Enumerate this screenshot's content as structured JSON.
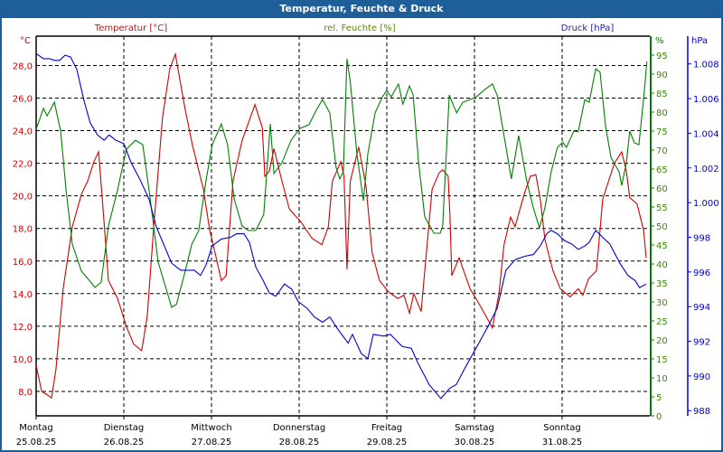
{
  "window": {
    "title": "Temperatur, Feuchte & Druck"
  },
  "chart_data": {
    "type": "line",
    "title": "Temperatur, Feuchte & Druck",
    "x_unit": "hours since Montag 25.08.25 00:00",
    "xlim": [
      0,
      168
    ],
    "days": [
      {
        "name": "Montag",
        "date": "25.08.25"
      },
      {
        "name": "Dienstag",
        "date": "26.08.25"
      },
      {
        "name": "Mittwoch",
        "date": "27.08.25"
      },
      {
        "name": "Donnerstag",
        "date": "28.08.25"
      },
      {
        "name": "Freitag",
        "date": "29.08.25"
      },
      {
        "name": "Samstag",
        "date": "30.08.25"
      },
      {
        "name": "Sonntag",
        "date": "31.08.25"
      }
    ],
    "grid": true,
    "axes": {
      "temperature": {
        "label": "Temperatur [°C]",
        "unit": "°C",
        "ylim": [
          6.5,
          29.8
        ],
        "ticks": [
          "8,0",
          "10,0",
          "12,0",
          "14,0",
          "16,0",
          "18,0",
          "20,0",
          "22,0",
          "24,0",
          "26,0",
          "28,0"
        ],
        "tick_values": [
          8,
          10,
          12,
          14,
          16,
          18,
          20,
          22,
          24,
          26,
          28
        ],
        "color": "#cc0000"
      },
      "humidity": {
        "label": "rel. Feuchte [%]",
        "unit": "%",
        "ylim": [
          0,
          100
        ],
        "ticks": [
          "0",
          "5",
          "10",
          "15",
          "20",
          "25",
          "30",
          "35",
          "40",
          "45",
          "50",
          "55",
          "60",
          "65",
          "70",
          "75",
          "80",
          "85",
          "90",
          "95"
        ],
        "tick_values": [
          0,
          5,
          10,
          15,
          20,
          25,
          30,
          35,
          40,
          45,
          50,
          55,
          60,
          65,
          70,
          75,
          80,
          85,
          90,
          95
        ],
        "color": "#008000"
      },
      "pressure": {
        "label": "Druck [hPa]",
        "unit": "hPa",
        "ylim": [
          987.7,
          1009.6
        ],
        "ticks": [
          "988",
          "990",
          "992",
          "994",
          "996",
          "998",
          "1.000",
          "1.002",
          "1.004",
          "1.006",
          "1.008"
        ],
        "tick_values": [
          988,
          990,
          992,
          994,
          996,
          998,
          1000,
          1002,
          1004,
          1006,
          1008
        ],
        "color": "#0000cc"
      }
    },
    "series": [
      {
        "name": "Temperatur",
        "axis": "temperature",
        "color": "#d00000",
        "points": [
          [
            0,
            9.6
          ],
          [
            1.5,
            8.0
          ],
          [
            3,
            7.8
          ],
          [
            4.2,
            7.6
          ],
          [
            5.4,
            9.3
          ],
          [
            7.4,
            14.3
          ],
          [
            9.9,
            18.1
          ],
          [
            12.4,
            20.1
          ],
          [
            14.1,
            20.9
          ],
          [
            15.8,
            22.1
          ],
          [
            17.1,
            22.7
          ],
          [
            18.1,
            19.8
          ],
          [
            19.8,
            14.8
          ],
          [
            22.3,
            13.7
          ],
          [
            24.7,
            12.0
          ],
          [
            26.7,
            10.9
          ],
          [
            28.9,
            10.5
          ],
          [
            30.4,
            12.6
          ],
          [
            32.2,
            18.1
          ],
          [
            34.6,
            24.8
          ],
          [
            36.6,
            27.8
          ],
          [
            38.1,
            28.7
          ],
          [
            40.8,
            25.3
          ],
          [
            42.8,
            23.1
          ],
          [
            45.8,
            20.4
          ],
          [
            47.5,
            17.9
          ],
          [
            49,
            16.5
          ],
          [
            50.7,
            14.8
          ],
          [
            52,
            15.1
          ],
          [
            53.9,
            20.9
          ],
          [
            56.4,
            23.4
          ],
          [
            59.9,
            25.6
          ],
          [
            61.9,
            24.2
          ],
          [
            62.6,
            21.2
          ],
          [
            63.8,
            21.5
          ],
          [
            65.1,
            22.9
          ],
          [
            67.3,
            20.9
          ],
          [
            69.3,
            19.2
          ],
          [
            72.5,
            18.4
          ],
          [
            75.5,
            17.4
          ],
          [
            78.2,
            17.0
          ],
          [
            80,
            18.1
          ],
          [
            81.1,
            20.9
          ],
          [
            83.4,
            22.1
          ],
          [
            84.3,
            21.2
          ],
          [
            85.1,
            15.5
          ],
          [
            86,
            20.9
          ],
          [
            88.3,
            23.0
          ],
          [
            90.3,
            20.6
          ],
          [
            92,
            16.5
          ],
          [
            94,
            14.8
          ],
          [
            96.5,
            14.1
          ],
          [
            99,
            13.7
          ],
          [
            100.7,
            13.9
          ],
          [
            102.2,
            12.8
          ],
          [
            103.4,
            14.0
          ],
          [
            105.4,
            12.9
          ],
          [
            106.4,
            15.4
          ],
          [
            108.4,
            20.4
          ],
          [
            110.3,
            21.4
          ],
          [
            111.3,
            21.6
          ],
          [
            112.8,
            21.2
          ],
          [
            113.3,
            18.7
          ],
          [
            113.8,
            15.1
          ],
          [
            115.8,
            16.2
          ],
          [
            118.8,
            14.3
          ],
          [
            121.2,
            13.4
          ],
          [
            123.2,
            12.6
          ],
          [
            124.9,
            11.9
          ],
          [
            126.7,
            14.0
          ],
          [
            128.1,
            17.0
          ],
          [
            129.9,
            18.7
          ],
          [
            131.1,
            18.1
          ],
          [
            133.6,
            20.1
          ],
          [
            135.3,
            21.2
          ],
          [
            136.8,
            21.3
          ],
          [
            138,
            19.8
          ],
          [
            139.3,
            17.3
          ],
          [
            141.5,
            15.4
          ],
          [
            143.5,
            14.3
          ],
          [
            146.2,
            13.8
          ],
          [
            148.4,
            14.3
          ],
          [
            149.7,
            13.9
          ],
          [
            151.2,
            14.9
          ],
          [
            153.4,
            15.4
          ],
          [
            155.1,
            19.8
          ],
          [
            158.3,
            22.0
          ],
          [
            160.3,
            22.7
          ],
          [
            161.6,
            21.5
          ],
          [
            162.5,
            19.9
          ],
          [
            164.5,
            19.5
          ],
          [
            166.3,
            17.9
          ],
          [
            167,
            16.2
          ]
        ]
      },
      {
        "name": "rel. Feuchte",
        "axis": "humidity",
        "color": "#008000",
        "points": [
          [
            0,
            75.5
          ],
          [
            2,
            81
          ],
          [
            3,
            79
          ],
          [
            5,
            82.6
          ],
          [
            6.7,
            75
          ],
          [
            8.2,
            59.5
          ],
          [
            9.9,
            45.2
          ],
          [
            12.4,
            38.1
          ],
          [
            14.1,
            36.2
          ],
          [
            16.1,
            33.8
          ],
          [
            17.8,
            35.2
          ],
          [
            19.8,
            50
          ],
          [
            22.3,
            59.5
          ],
          [
            24.7,
            70.2
          ],
          [
            27.2,
            72.6
          ],
          [
            29.2,
            71.4
          ],
          [
            30.9,
            59.5
          ],
          [
            33.4,
            40.5
          ],
          [
            37.1,
            28.6
          ],
          [
            38.4,
            29.3
          ],
          [
            40.8,
            38.1
          ],
          [
            42.6,
            45.2
          ],
          [
            44.5,
            48.8
          ],
          [
            46.5,
            61.9
          ],
          [
            48.2,
            71.4
          ],
          [
            50.7,
            76.9
          ],
          [
            52.4,
            71.4
          ],
          [
            54.2,
            57.1
          ],
          [
            56.4,
            50
          ],
          [
            58.1,
            48.8
          ],
          [
            60.1,
            48.8
          ],
          [
            62.3,
            53
          ],
          [
            64.1,
            76.9
          ],
          [
            65.1,
            63.8
          ],
          [
            67.3,
            66.7
          ],
          [
            69.8,
            72.6
          ],
          [
            72.2,
            75.7
          ],
          [
            74.7,
            76.7
          ],
          [
            76.7,
            80.5
          ],
          [
            78.4,
            83.3
          ],
          [
            80.4,
            79.8
          ],
          [
            82.1,
            65.5
          ],
          [
            83.1,
            62.4
          ],
          [
            84.1,
            64.3
          ],
          [
            85.1,
            94
          ],
          [
            86,
            88
          ],
          [
            87.8,
            69
          ],
          [
            89.6,
            56.7
          ],
          [
            90.8,
            69
          ],
          [
            92.8,
            79.8
          ],
          [
            94.8,
            84
          ],
          [
            96,
            85.7
          ],
          [
            97.2,
            84
          ],
          [
            99.2,
            87.4
          ],
          [
            100.4,
            82.1
          ],
          [
            102.2,
            86.9
          ],
          [
            103.2,
            84.5
          ],
          [
            104.7,
            66.7
          ],
          [
            106.4,
            52.4
          ],
          [
            108.9,
            48.1
          ],
          [
            110.6,
            48.1
          ],
          [
            111.3,
            50
          ],
          [
            113.1,
            84.5
          ],
          [
            115.1,
            79.8
          ],
          [
            116.8,
            82.6
          ],
          [
            118.8,
            83.3
          ],
          [
            120.5,
            84
          ],
          [
            122.5,
            85.7
          ],
          [
            124.9,
            87.4
          ],
          [
            126.2,
            84.5
          ],
          [
            128.1,
            73.8
          ],
          [
            130.1,
            62.4
          ],
          [
            132.1,
            73.8
          ],
          [
            134.3,
            61.9
          ],
          [
            136.1,
            54.8
          ],
          [
            137.8,
            49.5
          ],
          [
            139.3,
            54.8
          ],
          [
            141,
            64.3
          ],
          [
            142.7,
            70.7
          ],
          [
            144.2,
            72.1
          ],
          [
            145.2,
            70.7
          ],
          [
            147.2,
            75
          ],
          [
            148.4,
            74.8
          ],
          [
            150.2,
            83.3
          ],
          [
            151.4,
            82.6
          ],
          [
            153.2,
            91.4
          ],
          [
            154.4,
            90.5
          ],
          [
            155.9,
            76.2
          ],
          [
            157.4,
            67.9
          ],
          [
            159.6,
            64.3
          ],
          [
            160.3,
            60.7
          ],
          [
            161.6,
            66.7
          ],
          [
            162.5,
            75
          ],
          [
            163.8,
            71.9
          ],
          [
            165,
            71.4
          ],
          [
            166.3,
            83.3
          ],
          [
            167.2,
            93.3
          ]
        ]
      },
      {
        "name": "Druck",
        "axis": "pressure",
        "color": "#0000d0",
        "points": [
          [
            0,
            1008.6
          ],
          [
            2,
            1008.3
          ],
          [
            3.7,
            1008.3
          ],
          [
            5,
            1008.2
          ],
          [
            6.4,
            1008.2
          ],
          [
            7.9,
            1008.5
          ],
          [
            9.4,
            1008.4
          ],
          [
            11.1,
            1007.7
          ],
          [
            13.1,
            1005.9
          ],
          [
            14.8,
            1004.6
          ],
          [
            16.8,
            1003.9
          ],
          [
            18.6,
            1003.6
          ],
          [
            20,
            1003.9
          ],
          [
            21.8,
            1003.6
          ],
          [
            24,
            1003.4
          ],
          [
            26,
            1002.3
          ],
          [
            28.5,
            1001.3
          ],
          [
            30.9,
            1000.2
          ],
          [
            32.9,
            998.6
          ],
          [
            37.1,
            996.5
          ],
          [
            39.6,
            996.1
          ],
          [
            43.3,
            996.1
          ],
          [
            45,
            995.8
          ],
          [
            46.5,
            996.4
          ],
          [
            48.2,
            997.5
          ],
          [
            50.7,
            997.9
          ],
          [
            53.2,
            998.0
          ],
          [
            54.9,
            998.2
          ],
          [
            56.9,
            998.2
          ],
          [
            58.4,
            997.7
          ],
          [
            60.1,
            996.3
          ],
          [
            61.9,
            995.6
          ],
          [
            63.8,
            994.8
          ],
          [
            65.6,
            994.6
          ],
          [
            68,
            995.3
          ],
          [
            70,
            995.0
          ],
          [
            71.7,
            994.3
          ],
          [
            74.2,
            993.9
          ],
          [
            76.2,
            993.4
          ],
          [
            78.4,
            993.1
          ],
          [
            80.4,
            993.4
          ],
          [
            82.9,
            992.6
          ],
          [
            85.4,
            991.9
          ],
          [
            86.6,
            992.4
          ],
          [
            89,
            991.3
          ],
          [
            90.8,
            991.0
          ],
          [
            92.3,
            992.4
          ],
          [
            95.2,
            992.3
          ],
          [
            97,
            992.4
          ],
          [
            100.2,
            991.7
          ],
          [
            102.7,
            991.6
          ],
          [
            104.4,
            990.8
          ],
          [
            107.6,
            989.5
          ],
          [
            110.8,
            988.7
          ],
          [
            113.3,
            989.3
          ],
          [
            115,
            989.5
          ],
          [
            117.5,
            990.5
          ],
          [
            120.7,
            991.7
          ],
          [
            123.8,
            992.9
          ],
          [
            126.2,
            993.9
          ],
          [
            128.6,
            996.1
          ],
          [
            131.1,
            996.7
          ],
          [
            133.6,
            996.9
          ],
          [
            136.1,
            997.0
          ],
          [
            138,
            997.5
          ],
          [
            139.8,
            998.2
          ],
          [
            141,
            998.4
          ],
          [
            142.7,
            998.2
          ],
          [
            144.7,
            997.8
          ],
          [
            146.7,
            997.6
          ],
          [
            148.4,
            997.3
          ],
          [
            150.2,
            997.5
          ],
          [
            151.4,
            997.7
          ],
          [
            153.2,
            998.4
          ],
          [
            155.1,
            998.0
          ],
          [
            157.1,
            997.6
          ],
          [
            159.8,
            996.5
          ],
          [
            162,
            995.8
          ],
          [
            164,
            995.5
          ],
          [
            165.2,
            995.1
          ],
          [
            167,
            995.3
          ]
        ]
      }
    ]
  }
}
